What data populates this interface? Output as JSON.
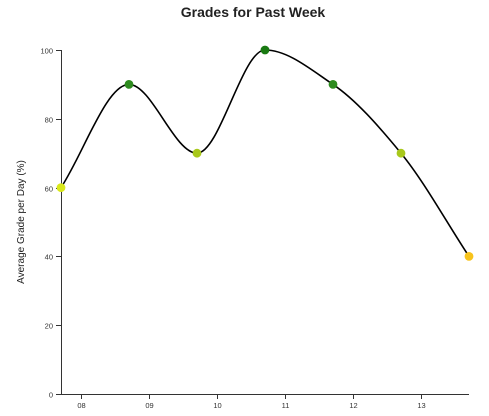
{
  "chart_data": {
    "type": "line",
    "title": "Grades for Past Week",
    "xlabel": "",
    "ylabel": "Average Grade per Day (%)",
    "x": [
      7.7,
      8.7,
      9.7,
      10.7,
      11.7,
      12.7,
      13.7
    ],
    "values": [
      60,
      90,
      70,
      100,
      90,
      70,
      40
    ],
    "point_colors": [
      "#d9e81a",
      "#2e8b1f",
      "#a8c81b",
      "#1a7a12",
      "#2e8b1f",
      "#a8c81b",
      "#f7c31c"
    ],
    "xlim": [
      7.7,
      13.7
    ],
    "ylim": [
      0,
      100
    ],
    "x_ticks": [
      8,
      9,
      10,
      11,
      12,
      13
    ],
    "x_tick_labels": [
      "08",
      "09",
      "10",
      "11",
      "12",
      "13"
    ],
    "y_ticks": [
      0,
      20,
      40,
      60,
      80,
      100
    ],
    "y_tick_labels": [
      "0",
      "20",
      "40",
      "60",
      "80",
      "100"
    ],
    "line_color": "#000000",
    "grid": false,
    "legend": false
  }
}
